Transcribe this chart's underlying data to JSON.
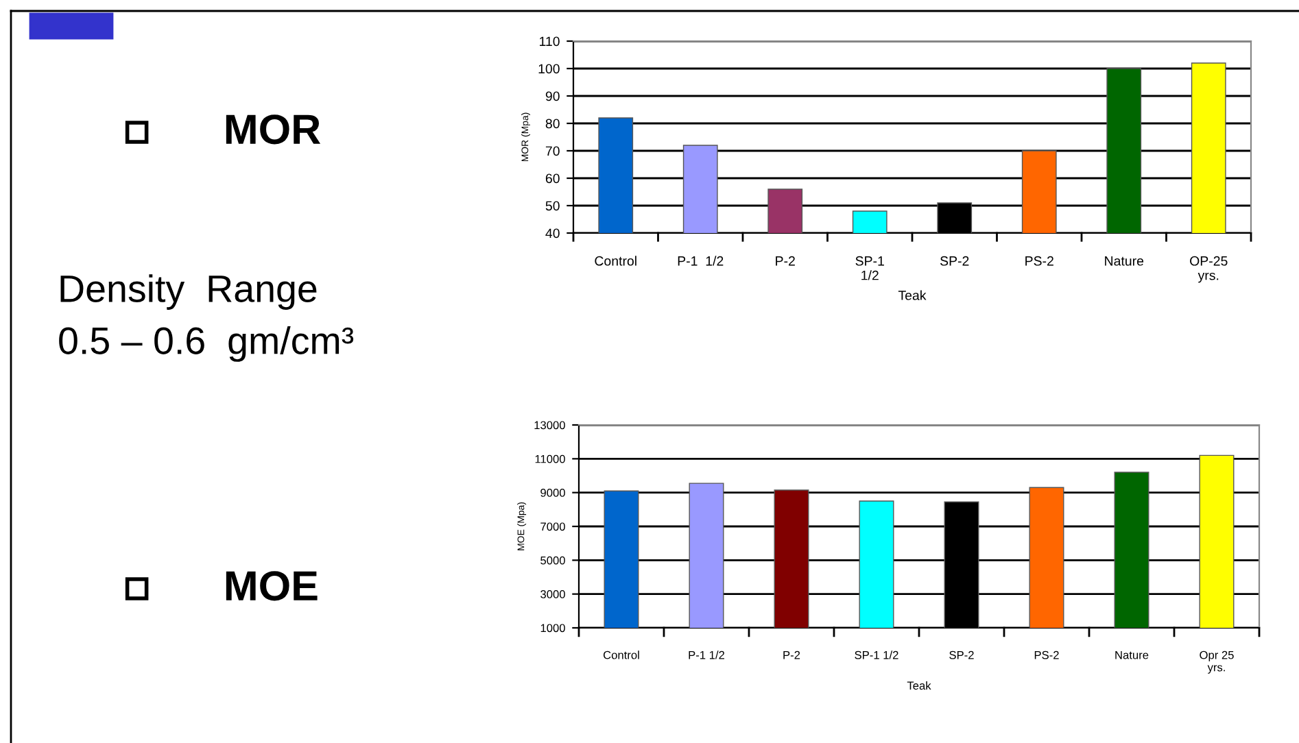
{
  "chart_data": [
    {
      "type": "bar",
      "title": "MOR",
      "annotations": [
        "Density  Range\n0.5 – 0.6  gm/cm³"
      ],
      "xlabel": "Teak",
      "ylabel": "MOR (Mpa)",
      "categories": [
        "Control",
        "P-1  1/2",
        "P-2",
        "SP-1\n1/2",
        "SP-2",
        "PS-2",
        "Nature",
        "OP-25\nyrs."
      ],
      "values": [
        82,
        72,
        56,
        48,
        51,
        70,
        100,
        102
      ],
      "colors": [
        "#0066cc",
        "#9999ff",
        "#993366",
        "#00ffff",
        "#000000",
        "#ff6600",
        "#006600",
        "#ffff00"
      ],
      "ylim": [
        40,
        110
      ],
      "yticks": [
        40,
        50,
        60,
        70,
        80,
        90,
        100,
        110
      ],
      "grid": "y",
      "legend": false
    },
    {
      "type": "bar",
      "title": "MOE",
      "xlabel": "Teak",
      "ylabel": "MOE (Mpa)",
      "categories": [
        "Control",
        "P-1 1/2",
        "P-2",
        "SP-1 1/2",
        "SP-2",
        "PS-2",
        "Nature",
        "Opr 25\nyrs."
      ],
      "values": [
        9100,
        9550,
        9150,
        8500,
        8450,
        9300,
        10200,
        11200
      ],
      "colors": [
        "#0066cc",
        "#9999ff",
        "#800000",
        "#00ffff",
        "#000000",
        "#ff6600",
        "#006600",
        "#ffff00"
      ],
      "ylim": [
        1000,
        13000
      ],
      "yticks": [
        1000,
        3000,
        5000,
        7000,
        9000,
        11000,
        13000
      ],
      "grid": "y",
      "legend": false
    }
  ]
}
